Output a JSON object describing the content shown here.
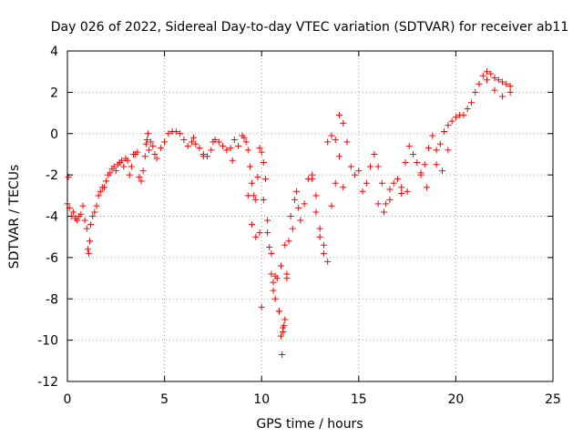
{
  "chart_data": {
    "type": "scatter",
    "title": "Day 026 of 2022, Sidereal Day-to-day VTEC variation (SDTVAR) for receiver ab11",
    "xlabel": "GPS time / hours",
    "ylabel": "SDTVAR / TECUs",
    "xlim": [
      0,
      25
    ],
    "ylim": [
      -12,
      4
    ],
    "xticks": [
      0,
      5,
      10,
      15,
      20,
      25
    ],
    "yticks": [
      -12,
      -10,
      -8,
      -6,
      -4,
      -2,
      0,
      2,
      4
    ],
    "grid": true,
    "marker": "+",
    "color": "#ff0000",
    "series": [
      {
        "name": "ab11",
        "x": [
          0.0,
          0.05,
          0.1,
          0.2,
          0.3,
          0.4,
          0.5,
          0.6,
          0.7,
          0.8,
          0.9,
          1.0,
          1.05,
          1.1,
          1.15,
          1.2,
          1.3,
          1.4,
          1.5,
          1.6,
          1.7,
          1.8,
          1.9,
          2.0,
          2.1,
          2.2,
          2.3,
          2.4,
          2.5,
          2.6,
          2.7,
          2.8,
          2.9,
          3.0,
          3.1,
          3.2,
          3.3,
          3.4,
          3.5,
          3.6,
          3.7,
          3.8,
          3.9,
          4.0,
          4.05,
          4.1,
          4.15,
          4.2,
          4.3,
          4.4,
          4.5,
          4.6,
          4.8,
          5.0,
          5.2,
          5.4,
          5.6,
          5.8,
          6.0,
          6.2,
          6.4,
          6.6,
          6.8,
          7.0,
          7.2,
          7.4,
          7.6,
          7.8,
          8.0,
          8.2,
          8.4,
          8.6,
          8.8,
          9.0,
          9.1,
          9.2,
          9.3,
          9.4,
          9.5,
          9.6,
          9.7,
          9.8,
          9.9,
          10.0,
          10.1,
          10.2,
          10.3,
          10.4,
          10.5,
          10.6,
          10.7,
          10.8,
          10.9,
          11.0,
          11.05,
          11.1,
          11.15,
          11.2,
          11.3,
          11.4,
          11.5,
          11.6,
          11.7,
          11.8,
          11.9,
          12.0,
          12.2,
          12.4,
          12.6,
          12.8,
          13.0,
          13.2,
          13.4,
          13.6,
          13.8,
          14.0,
          14.2,
          14.4,
          14.6,
          14.8,
          15.0,
          15.2,
          15.4,
          15.6,
          15.8,
          16.0,
          16.2,
          16.4,
          16.6,
          16.8,
          17.0,
          17.2,
          17.4,
          17.6,
          17.8,
          18.0,
          18.2,
          18.4,
          18.6,
          18.8,
          19.0,
          19.2,
          19.4,
          19.6,
          19.8,
          20.0,
          20.2,
          20.4,
          20.6,
          20.8,
          21.0,
          21.2,
          21.4,
          21.6,
          21.8,
          22.0,
          22.2,
          22.4,
          22.6,
          22.8,
          9.3,
          9.5,
          9.7,
          9.9,
          10.1,
          10.3,
          10.5,
          10.7,
          10.9,
          11.1,
          11.3,
          13.4,
          13.6,
          13.8,
          14.0,
          14.2,
          10.0,
          10.6,
          11.0,
          11.2,
          12.6,
          12.8,
          13.0,
          13.2,
          16.0,
          16.3,
          16.6,
          17.2,
          17.5,
          18.2,
          18.5,
          19.0,
          19.3,
          19.6,
          21.6,
          22.0,
          22.4,
          22.8,
          6.5,
          7.0,
          7.5,
          8.5
        ],
        "y": [
          -3.4,
          -2.1,
          -3.6,
          -4.0,
          -3.8,
          -4.1,
          -4.2,
          -4.0,
          -3.9,
          -3.5,
          -4.2,
          -4.6,
          -5.6,
          -5.8,
          -5.2,
          -4.4,
          -4.0,
          -3.8,
          -3.5,
          -3.0,
          -2.8,
          -2.6,
          -2.6,
          -2.3,
          -2.0,
          -1.9,
          -1.7,
          -1.6,
          -1.8,
          -1.5,
          -1.4,
          -1.3,
          -1.6,
          -1.2,
          -1.3,
          -2.0,
          -1.6,
          -1.0,
          -1.0,
          -0.9,
          -2.1,
          -2.3,
          -1.8,
          -1.1,
          -0.5,
          -0.3,
          0.0,
          -0.8,
          -0.4,
          -0.6,
          -1.0,
          -1.2,
          -0.7,
          -0.4,
          0.0,
          0.1,
          0.1,
          0.0,
          -0.3,
          -0.6,
          -0.4,
          -0.5,
          -0.7,
          -1.0,
          -1.1,
          -0.8,
          -0.3,
          -0.4,
          -0.6,
          -0.8,
          -0.7,
          -0.3,
          -0.6,
          -0.1,
          -0.2,
          -0.4,
          -0.8,
          -1.6,
          -2.4,
          -3.0,
          -3.2,
          -2.1,
          -0.7,
          -0.9,
          -1.4,
          -2.2,
          -4.2,
          -5.5,
          -6.8,
          -7.6,
          -8.0,
          -7.0,
          -8.6,
          -9.8,
          -10.7,
          -9.6,
          -9.3,
          -9.0,
          -7.0,
          -5.2,
          -4.0,
          -4.6,
          -3.2,
          -2.8,
          -3.6,
          -4.2,
          -3.4,
          -2.2,
          -2.0,
          -3.0,
          -5.0,
          -5.4,
          -6.2,
          -3.5,
          -2.4,
          0.9,
          0.5,
          -0.4,
          -1.6,
          -2.0,
          -1.8,
          -2.8,
          -2.4,
          -1.6,
          -1.0,
          -1.6,
          -2.4,
          -3.4,
          -2.7,
          -2.4,
          -2.2,
          -2.9,
          -1.4,
          -0.6,
          -1.0,
          -1.4,
          -2.0,
          -1.5,
          -0.7,
          -0.1,
          -0.8,
          -0.5,
          0.1,
          0.4,
          0.6,
          0.8,
          0.9,
          0.9,
          1.2,
          1.5,
          2.0,
          2.4,
          2.8,
          3.0,
          2.9,
          2.7,
          2.6,
          2.5,
          2.4,
          2.3,
          -3.0,
          -4.4,
          -5.0,
          -4.8,
          -3.2,
          -4.8,
          -5.8,
          -6.9,
          -8.6,
          -9.4,
          -6.8,
          -0.4,
          -0.1,
          -0.3,
          -1.1,
          -2.6,
          -8.4,
          -7.2,
          -6.4,
          -5.4,
          -2.2,
          -3.8,
          -4.6,
          -5.8,
          -3.4,
          -3.8,
          -3.2,
          -2.6,
          -2.8,
          -1.9,
          -2.6,
          -1.5,
          -1.8,
          -0.8,
          2.6,
          2.1,
          1.8,
          2.0,
          -0.2,
          -1.1,
          -0.4,
          -1.3
        ]
      }
    ]
  }
}
